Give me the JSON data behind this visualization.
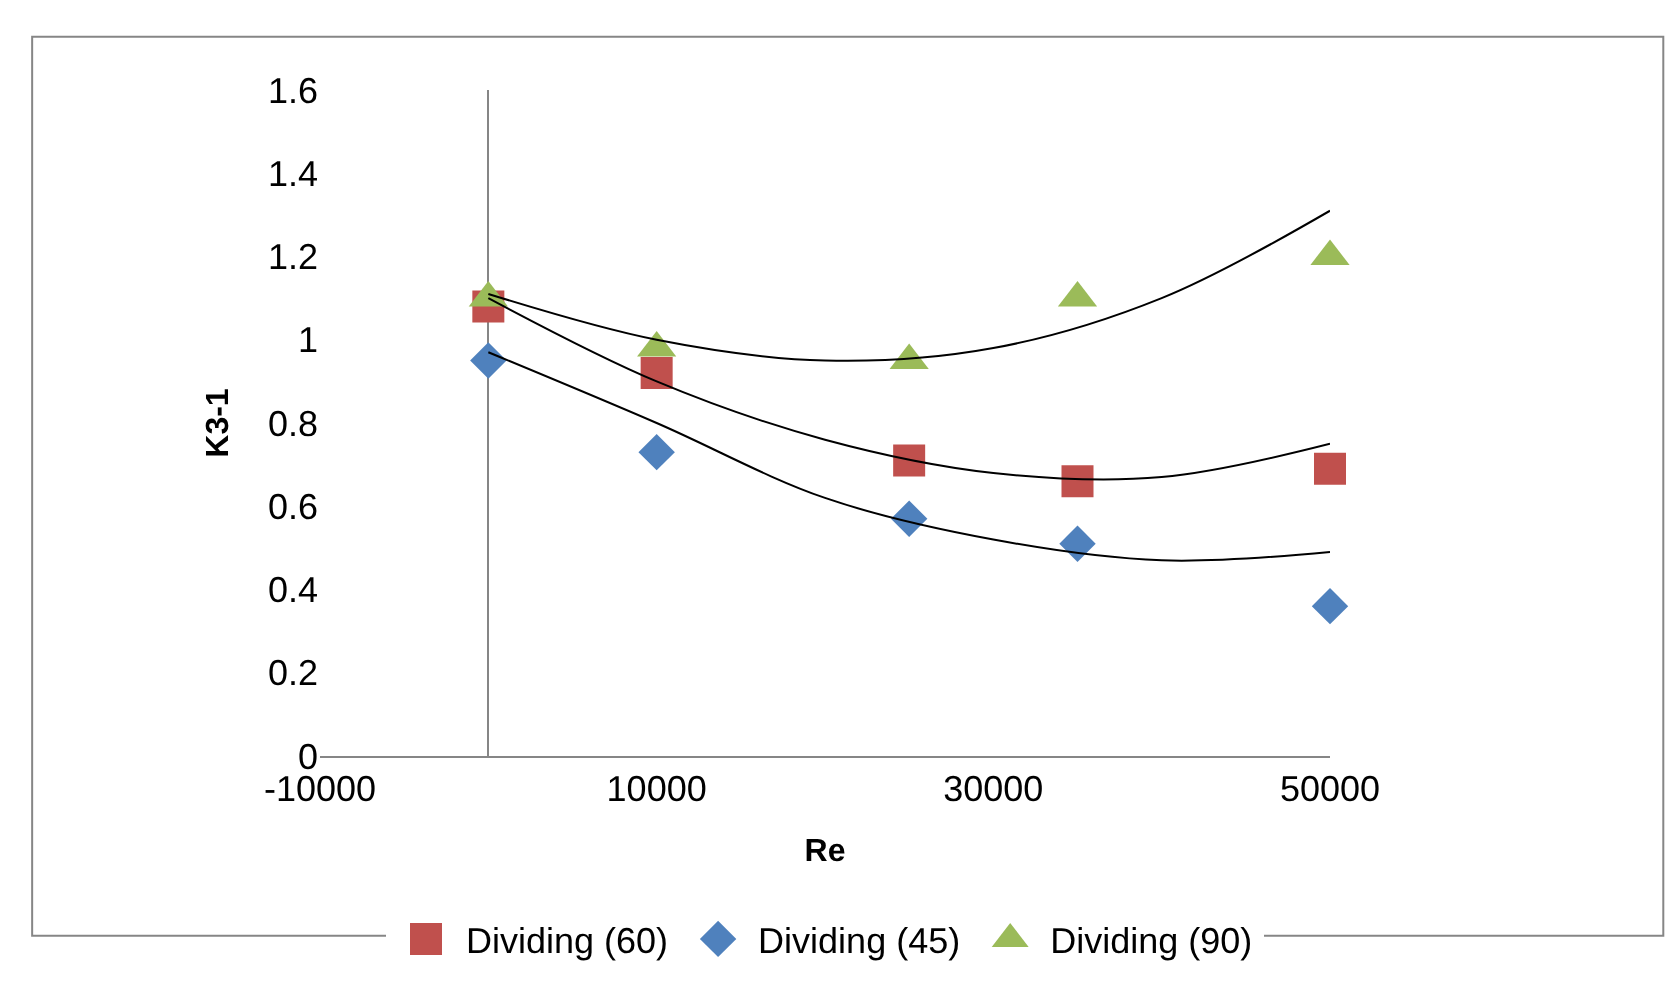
{
  "chart_data": {
    "type": "scatter",
    "xlabel": "Re",
    "ylabel": "K3-1",
    "x": [
      0,
      10000,
      25000,
      35000,
      50000
    ],
    "series": [
      {
        "name": "Dividing (60)",
        "color": "#c0504d",
        "marker": "square",
        "values": [
          1.08,
          0.92,
          0.71,
          0.66,
          0.69
        ]
      },
      {
        "name": "Dividing (45)",
        "color": "#4f81bd",
        "marker": "diamond",
        "values": [
          0.95,
          0.73,
          0.57,
          0.51,
          0.36
        ]
      },
      {
        "name": "Dividing (90)",
        "color": "#9bbb59",
        "marker": "triangle",
        "values": [
          1.1,
          0.98,
          0.95,
          1.1,
          1.2
        ]
      },
      {
        "type": "line",
        "color": "#000000",
        "marker": "none",
        "x": [
          0,
          10000,
          20000,
          30000,
          40000,
          50000
        ],
        "values": [
          1.11,
          1.0,
          0.95,
          0.98,
          1.1,
          1.31
        ]
      },
      {
        "type": "line",
        "color": "#000000",
        "marker": "none",
        "x": [
          0,
          10000,
          20000,
          30000,
          40000,
          50000
        ],
        "values": [
          1.1,
          0.9,
          0.76,
          0.68,
          0.67,
          0.75
        ]
      },
      {
        "type": "line",
        "color": "#000000",
        "marker": "none",
        "x": [
          0,
          10000,
          20000,
          30000,
          40000,
          50000
        ],
        "values": [
          0.97,
          0.8,
          0.62,
          0.52,
          0.47,
          0.49
        ]
      }
    ],
    "xlim": [
      -10000,
      50000
    ],
    "xticks": [
      -10000,
      10000,
      30000,
      50000
    ],
    "ylim": [
      0,
      1.6
    ],
    "yticks": [
      0,
      0.2,
      0.4,
      0.6,
      0.8,
      1,
      1.2,
      1.4,
      1.6
    ],
    "legend": "bottom"
  }
}
